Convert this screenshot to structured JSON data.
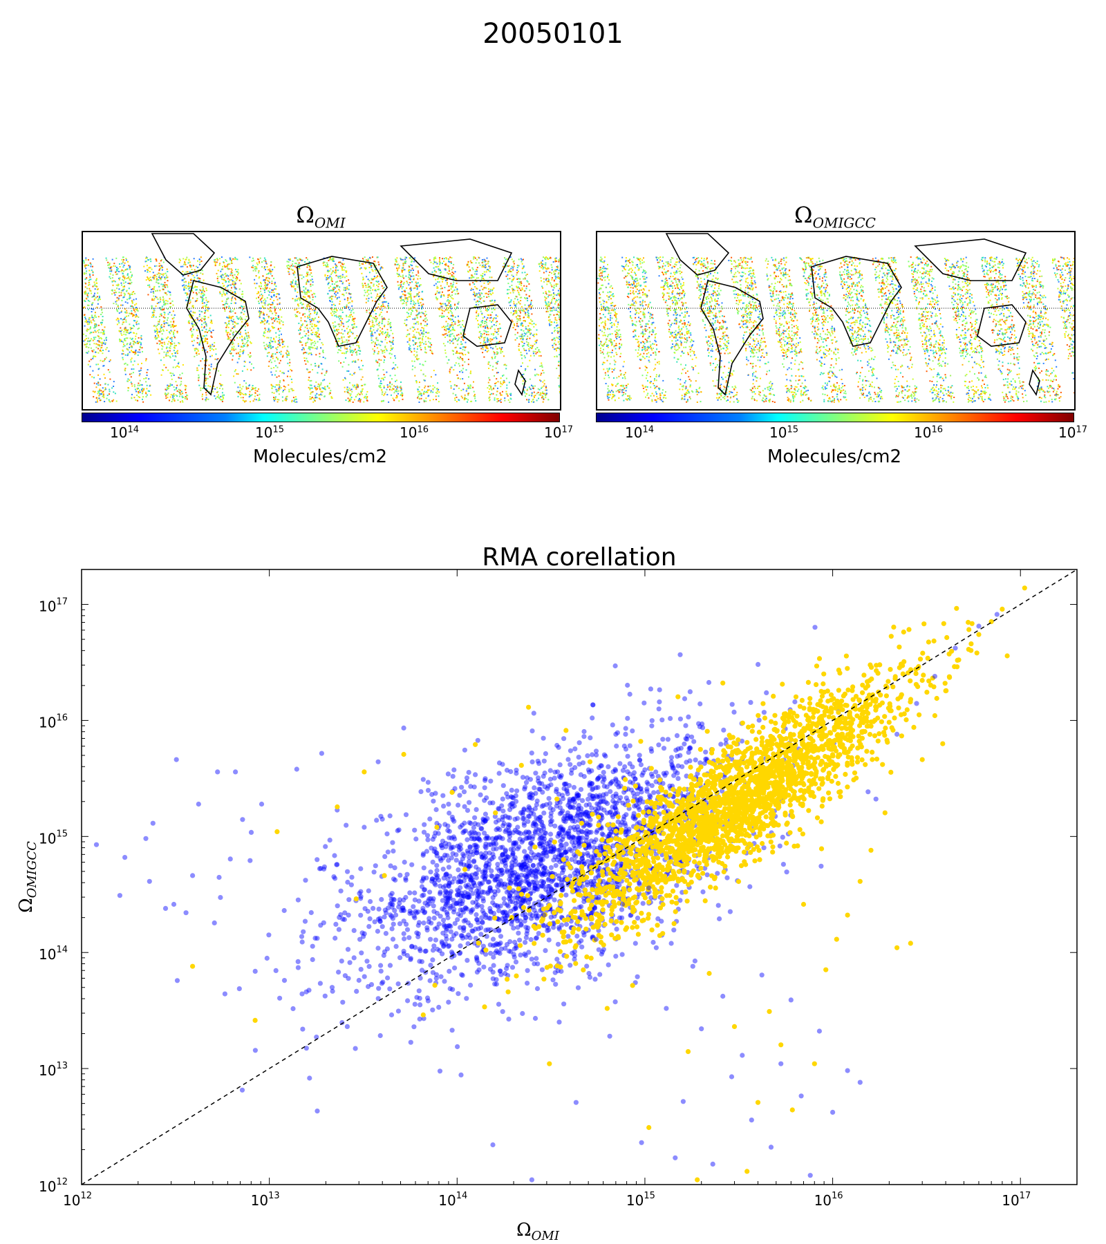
{
  "suptitle": "20050101",
  "maps": [
    {
      "title_main": "Ω",
      "title_sub": "OMI",
      "colorbar_label": "Molecules/cm2",
      "colorbar_ticks": [
        "14",
        "15",
        "16",
        "17"
      ]
    },
    {
      "title_main": "Ω",
      "title_sub": "OMIGCC",
      "colorbar_label": "Molecules/cm2",
      "colorbar_ticks": [
        "14",
        "15",
        "16",
        "17"
      ]
    }
  ],
  "colors": {
    "omi": "#0000ff",
    "omigcc": "#ffd700",
    "one_to_one": "#000000"
  },
  "chart_data": [
    {
      "type": "heatmap",
      "title": "Ω_OMI",
      "colorbar_label": "Molecules/cm2",
      "colorbar_range": [
        50000000000000.0,
        1e+17
      ],
      "colorbar_scale": "log",
      "colorbar_ticks": [
        100000000000000.0,
        1000000000000000.0,
        1e+16,
        1e+17
      ]
    },
    {
      "type": "heatmap",
      "title": "Ω_OMIGCC",
      "colorbar_label": "Molecules/cm2",
      "colorbar_range": [
        50000000000000.0,
        1e+17
      ],
      "colorbar_scale": "log",
      "colorbar_ticks": [
        100000000000000.0,
        1000000000000000.0,
        1e+16,
        1e+17
      ]
    },
    {
      "type": "scatter",
      "title": "RMA corellation",
      "xlabel_main": "Ω",
      "xlabel_sub": "OMI",
      "ylabel_main": "Ω",
      "ylabel_sub": "OMIGCC",
      "xscale": "log",
      "yscale": "log",
      "xlim": [
        1000000000000.0,
        2e+17
      ],
      "ylim": [
        1000000000000.0,
        2e+17
      ],
      "xticks": [
        1000000000000.0,
        10000000000000.0,
        100000000000000.0,
        1000000000000000.0,
        1e+16,
        1e+17
      ],
      "yticks": [
        1000000000000.0,
        10000000000000.0,
        100000000000000.0,
        1000000000000000.0,
        1e+16,
        1e+17
      ],
      "tick_exponents": [
        "12",
        "13",
        "14",
        "15",
        "16",
        "17"
      ],
      "one_to_one_line": true,
      "series": [
        {
          "color": "#0000ff",
          "alpha": 0.45,
          "points": [
            [
              1200000000000.0,
              850000000000000.0
            ],
            [
              1600000000000.0,
              310000000000000.0
            ],
            [
              1700000000000.0,
              660000000000000.0
            ],
            [
              2200000000000.0,
              960000000000000.0
            ],
            [
              2300000000000.0,
              410000000000000.0
            ],
            [
              2400000000000.0,
              1300000000000000.0
            ],
            [
              2800000000000.0,
              240000000000000.0
            ],
            [
              3100000000000.0,
              260000000000000.0
            ],
            [
              3200000000000.0,
              4600000000000000.0
            ],
            [
              3600000000000.0,
              220000000000000.0
            ],
            [
              3900000000000.0,
              460000000000000.0
            ],
            [
              4200000000000.0,
              1900000000000000.0
            ],
            [
              5100000000000.0,
              180000000000000.0
            ],
            [
              5300000000000.0,
              3600000000000000.0
            ],
            [
              5800000000000.0,
              44000000000000.0
            ],
            [
              6200000000000.0,
              640000000000000.0
            ],
            [
              6600000000000.0,
              3600000000000000.0
            ],
            [
              7200000000000.0,
              1400000000000000.0
            ],
            [
              7900000000000.0,
              620000000000000.0
            ],
            [
              9100000000000.0,
              1900000000000000.0
            ],
            [
              12000000000000.0,
              230000000000000.0
            ],
            [
              14000000000000.0,
              3800000000000000.0
            ],
            [
              18000000000000.0,
              4300000000000.0
            ],
            [
              19000000000000.0,
              5200000000000000.0
            ],
            [
              21000000000000.0,
              930000000000000.0
            ],
            [
              26000000000000.0,
              23000000000000.0
            ],
            [
              32000000000000.0,
              1200000000000000.0
            ],
            [
              38000000000000.0,
              4400000000000000.0
            ],
            [
              45000000000000.0,
              160000000000000.0
            ],
            [
              52000000000000.0,
              8600000000000000.0
            ],
            [
              61000000000000.0,
              41000000000000.0
            ],
            [
              66000000000000.0,
              3100000000000000.0
            ],
            [
              74000000000000.0,
              32000000000000.0
            ],
            [
              82000000000000.0,
              620000000000000.0
            ],
            [
              95000000000000.0,
              3300000000000000.0
            ],
            [
              105000000000000.0,
              8800000000000.0
            ],
            [
              118000000000000.0,
              2700000000000000.0
            ],
            [
              130000000000000.0,
              160000000000000.0
            ],
            [
              142000000000000.0,
              720000000000000.0
            ],
            [
              155000000000000.0,
              2200000000000.0
            ],
            [
              168000000000000.0,
              4300000000000000.0
            ],
            [
              180000000000000.0,
              66000000000000.0
            ],
            [
              194000000000000.0,
              2200000000000000.0
            ],
            [
              210000000000000.0,
              1200000000000000.0
            ],
            [
              230000000000000.0,
              460000000000000.0
            ],
            [
              250000000000000.0,
              1100000000000.0
            ],
            [
              270000000000000.0,
              3200000000000000.0
            ],
            [
              290000000000000.0,
              210000000000000.0
            ],
            [
              310000000000000.0,
              890000000000000.0
            ],
            [
              340000000000000.0,
              6100000000000000.0
            ],
            [
              370000000000000.0,
              36000000000000.0
            ],
            [
              400000000000000.0,
              1800000000000000.0
            ],
            [
              430000000000000.0,
              5100000000000.0
            ],
            [
              470000000000000.0,
              610000000000000.0
            ],
            [
              510000000000000.0,
              2900000000000000.0
            ],
            [
              550000000000000.0,
              130000000000000.0
            ],
            [
              600000000000000.0,
              410000000000000.0
            ],
            [
              650000000000000.0,
              19000000000000.0
            ],
            [
              700000000000000.0,
              7600000000000000.0
            ],
            [
              760000000000000.0,
              260000000000000.0
            ],
            [
              820000000000000.0,
              1100000000000000.0
            ],
            [
              890000000000000.0,
              55000000000000.0
            ],
            [
              960000000000000.0,
              2300000000000.0
            ],
            [
              1050000000000000.0,
              360000000000000.0
            ],
            [
              1150000000000000.0,
              110000000000000.0
            ],
            [
              1300000000000000.0,
              33000000000000.0
            ],
            [
              1450000000000000.0,
              1700000000000.0
            ],
            [
              1600000000000000.0,
              5200000000000.0
            ],
            [
              1800000000000000.0,
              76000000000000.0
            ],
            [
              2000000000000000.0,
              22000000000000.0
            ],
            [
              2300000000000000.0,
              1500000000000.0
            ],
            [
              2600000000000000.0,
              42000000000000.0
            ],
            [
              2900000000000000.0,
              8500000000000.0
            ],
            [
              3300000000000000.0,
              13000000000000.0
            ],
            [
              3700000000000000.0,
              3600000000000.0
            ],
            [
              4200000000000000.0,
              64000000000000.0
            ],
            [
              4700000000000000.0,
              2100000000000.0
            ],
            [
              5300000000000000.0,
              11000000000000.0
            ],
            [
              6000000000000000.0,
              39000000000000.0
            ],
            [
              6800000000000000.0,
              5800000000000.0
            ],
            [
              7600000000000000.0,
              1200000000000.0
            ],
            [
              8500000000000000.0,
              21000000000000.0
            ],
            [
              1e+16,
              4200000000000.0
            ],
            [
              1.2e+16,
              9600000000000.0
            ],
            [
              1.4e+16,
              7600000000000.0
            ],
            [
              1.7e+16,
              2100000000000000.0
            ],
            [
              2.2e+16,
              7600000000000000.0
            ],
            [
              2.8e+16,
              1.4e+16
            ],
            [
              3.5e+16,
              2.4e+16
            ],
            [
              4.5e+16,
              4.2e+16
            ],
            [
              6e+16,
              6.5e+16
            ],
            [
              7.5e+16,
              8.2e+16
            ]
          ]
        },
        {
          "color": "#ffd700",
          "alpha": 1.0,
          "points": [
            [
              3900000000000.0,
              76000000000000.0
            ],
            [
              8400000000000.0,
              26000000000000.0
            ],
            [
              11000000000000.0,
              1100000000000000.0
            ],
            [
              23000000000000.0,
              1800000000000000.0
            ],
            [
              29000000000000.0,
              290000000000000.0
            ],
            [
              32000000000000.0,
              3600000000000000.0
            ],
            [
              41000000000000.0,
              460000000000000.0
            ],
            [
              52000000000000.0,
              5100000000000000.0
            ],
            [
              66000000000000.0,
              29000000000000.0
            ],
            [
              78000000000000.0,
              1200000000000000.0
            ],
            [
              94000000000000.0,
              2400000000000000.0
            ],
            [
              110000000000000.0,
              520000000000000.0
            ],
            [
              125000000000000.0,
              6200000000000000.0
            ],
            [
              140000000000000.0,
              34000000000000.0
            ],
            [
              160000000000000.0,
              1600000000000000.0
            ],
            [
              190000000000000.0,
              360000000000000.0
            ],
            [
              220000000000000.0,
              4100000000000000.0
            ],
            [
              240000000000000.0,
              1.3e+16
            ],
            [
              260000000000000.0,
              810000000000000.0
            ],
            [
              290000000000000.0,
              59000000000000.0
            ],
            [
              310000000000000.0,
              11000000000000.0
            ],
            [
              340000000000000.0,
              2100000000000000.0
            ],
            [
              380000000000000.0,
              8200000000000000.0
            ],
            [
              420000000000000.0,
              280000000000000.0
            ],
            [
              460000000000000.0,
              1300000000000000.0
            ],
            [
              510000000000000.0,
              4400000000000000.0
            ],
            [
              570000000000000.0,
              210000000000000.0
            ],
            [
              630000000000000.0,
              33000000000000.0
            ],
            [
              700000000000000.0,
              960000000000000.0
            ],
            [
              780000000000000.0,
              2600000000000000.0
            ],
            [
              860000000000000.0,
              52000000000000.0
            ],
            [
              950000000000000.0,
              6600000000000000.0
            ],
            [
              1050000000000000.0,
              3100000000000.0
            ],
            [
              1200000000000000.0,
              140000000000000.0
            ],
            [
              1350000000000000.0,
              430000000000000.0
            ],
            [
              1500000000000000.0,
              1.6e+16
            ],
            [
              1700000000000000.0,
              14000000000000.0
            ],
            [
              1900000000000000.0,
              1100000000000.0
            ],
            [
              2200000000000000.0,
              66000000000000.0
            ],
            [
              2600000000000000.0,
              2.1e+16
            ],
            [
              3000000000000000.0,
              23000000000000.0
            ],
            [
              3500000000000000.0,
              1300000000000.0
            ],
            [
              4000000000000000.0,
              5100000000000.0
            ],
            [
              4600000000000000.0,
              31000000000000.0
            ],
            [
              5300000000000000.0,
              16000000000000.0
            ],
            [
              6100000000000000.0,
              4400000000000.0
            ],
            [
              7000000000000000.0,
              260000000000000.0
            ],
            [
              8000000000000000.0,
              11000000000000.0
            ],
            [
              9200000000000000.0,
              71000000000000.0
            ],
            [
              1.05e+16,
              130000000000000.0
            ],
            [
              1.2e+16,
              210000000000000.0
            ],
            [
              1.4e+16,
              410000000000000.0
            ],
            [
              1.6e+16,
              760000000000000.0
            ],
            [
              1.9e+16,
              1600000000000000.0
            ],
            [
              2.2e+16,
              110000000000000.0
            ],
            [
              2.6e+16,
              120000000000000.0
            ],
            [
              3e+16,
              4600000000000000.0
            ],
            [
              3.5e+16,
              1.1e+16
            ],
            [
              4e+16,
              1.8e+16
            ],
            [
              4.6e+16,
              2.9e+16
            ],
            [
              5.3e+16,
              4.1e+16
            ],
            [
              6e+16,
              5.5e+16
            ],
            [
              7e+16,
              7.1e+16
            ],
            [
              8e+16,
              9.1e+16
            ],
            [
              8.5e+16,
              3.6e+16
            ]
          ]
        }
      ],
      "dense_cores": [
        {
          "series": 0,
          "center": [
            300000000000000.0,
            600000000000000.0
          ],
          "spread_dex": 0.65
        },
        {
          "series": 1,
          "center": [
            3000000000000000.0,
            2000000000000000.0
          ],
          "spread_dex": 0.5
        }
      ]
    }
  ]
}
